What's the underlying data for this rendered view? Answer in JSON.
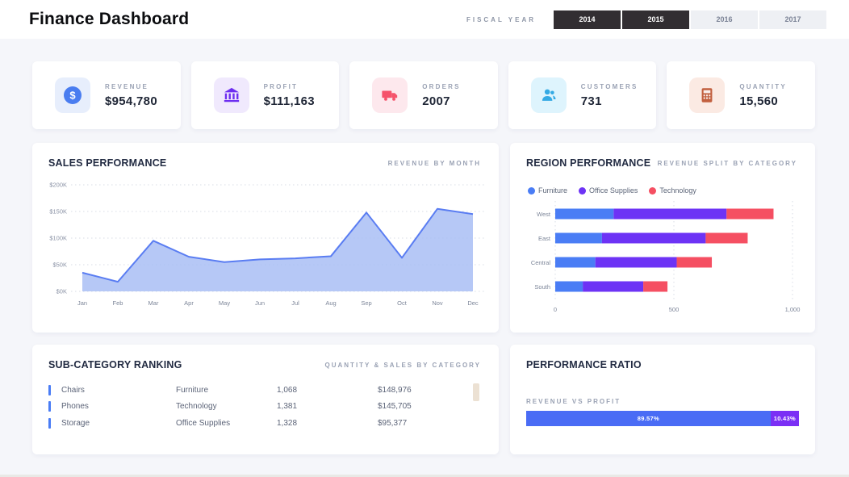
{
  "header": {
    "title": "Finance Dashboard",
    "fiscal_year_label": "FISCAL YEAR",
    "years": [
      {
        "label": "2014",
        "active": true
      },
      {
        "label": "2015",
        "active": true
      },
      {
        "label": "2016",
        "active": false
      },
      {
        "label": "2017",
        "active": false
      }
    ]
  },
  "kpis": [
    {
      "label": "REVENUE",
      "value": "$954,780",
      "icon": "dollar-circle-icon",
      "icon_color": "#4a7df0",
      "icon_bg": "#e7eefc"
    },
    {
      "label": "PROFIT",
      "value": "$111,163",
      "icon": "bank-icon",
      "icon_color": "#6d2ef0",
      "icon_bg": "#f0e9fd"
    },
    {
      "label": "ORDERS",
      "value": "2007",
      "icon": "truck-icon",
      "icon_color": "#f5536b",
      "icon_bg": "#fde8ed"
    },
    {
      "label": "CUSTOMERS",
      "value": "731",
      "icon": "customers-icon",
      "icon_color": "#35aae4",
      "icon_bg": "#def4fd"
    },
    {
      "label": "QUANTITY",
      "value": "15,560",
      "icon": "calculator-icon",
      "icon_color": "#c2603f",
      "icon_bg": "#fbeae3"
    }
  ],
  "sales_performance": {
    "title": "SALES PERFORMANCE",
    "subtitle": "REVENUE BY MONTH",
    "chart_data": {
      "type": "area",
      "x": [
        "Jan",
        "Feb",
        "Mar",
        "Apr",
        "May",
        "Jun",
        "Jul",
        "Aug",
        "Sep",
        "Oct",
        "Nov",
        "Dec"
      ],
      "values_thousands": [
        35,
        18,
        95,
        65,
        55,
        60,
        62,
        66,
        148,
        63,
        155,
        145
      ],
      "ylim": [
        0,
        200
      ],
      "yticks": [
        "$0K",
        "$50K",
        "$100K",
        "$150K",
        "$200K"
      ],
      "grid": "dotted-horizontal",
      "line_color": "#5a7df2",
      "fill_color": "#a9bef5"
    }
  },
  "region_performance": {
    "title": "REGION PERFORMANCE",
    "subtitle": "REVENUE SPLIT BY CATEGORY",
    "chart_data": {
      "type": "stacked-bar-horizontal",
      "categories": [
        "West",
        "East",
        "Central",
        "South"
      ],
      "series": [
        {
          "name": "Furniture",
          "color": "#4a7df5",
          "values": [
            246,
            197,
            169,
            116
          ]
        },
        {
          "name": "Office Supplies",
          "color": "#6d33f5",
          "values": [
            476,
            437,
            343,
            255
          ]
        },
        {
          "name": "Technology",
          "color": "#f54f62",
          "values": [
            198,
            177,
            148,
            102
          ]
        }
      ],
      "xlim": [
        0,
        1000
      ],
      "xticks": [
        "0",
        "500",
        "1,000"
      ],
      "grid": "dotted-vertical",
      "legend_position": "top"
    }
  },
  "subcategory_ranking": {
    "title": "SUB-CATEGORY RANKING",
    "subtitle": "QUANTITY & SALES BY CATEGORY",
    "rows": [
      {
        "name": "Chairs",
        "category": "Furniture",
        "quantity": "1,068",
        "sales": "$148,976"
      },
      {
        "name": "Phones",
        "category": "Technology",
        "quantity": "1,381",
        "sales": "$145,705"
      },
      {
        "name": "Storage",
        "category": "Office Supplies",
        "quantity": "1,328",
        "sales": "$95,377"
      }
    ],
    "accent_color": "#4a7df5"
  },
  "performance_ratio": {
    "title": "PERFORMANCE RATIO",
    "label": "REVENUE VS PROFIT",
    "chart_data": {
      "type": "bar",
      "segments": [
        {
          "name": "Revenue",
          "label": "89.57%",
          "value": 89.57,
          "color": "#4a6cf5"
        },
        {
          "name": "Profit",
          "label": "10.43%",
          "value": 10.43,
          "color": "#7b2ff5"
        }
      ]
    }
  }
}
